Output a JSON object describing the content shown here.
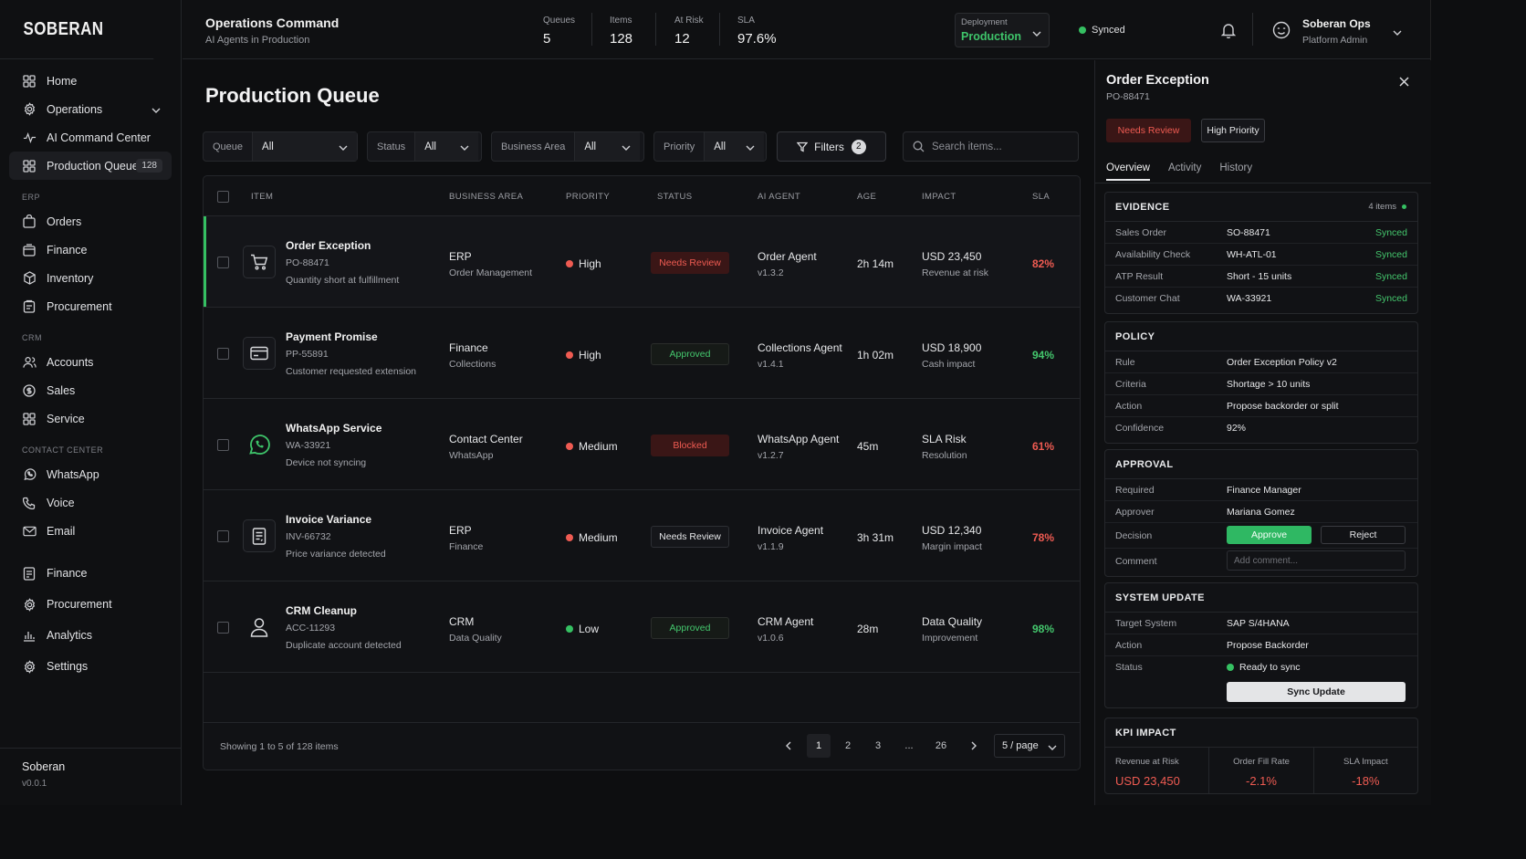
{
  "brand": "SOBERAN",
  "colors": {
    "accent_green": "#44c76d",
    "danger_red": "#ef5b52"
  },
  "sidebar": {
    "top_items": [
      {
        "label": "Home",
        "icon": "grid-icon"
      },
      {
        "label": "Operations",
        "icon": "gear-icon"
      },
      {
        "label": "AI Command Center",
        "icon": "pulse-icon"
      },
      {
        "label": "Production Queue",
        "icon": "grid-icon",
        "badge": "128"
      }
    ],
    "sections": [
      {
        "title": "ERP",
        "items": [
          "Orders",
          "Finance",
          "Inventory",
          "Procurement"
        ]
      },
      {
        "title": "CRM",
        "items": [
          "Accounts",
          "Sales",
          "Service"
        ]
      },
      {
        "title": "CONTACT CENTER",
        "items": [
          "WhatsApp",
          "Voice",
          "Email"
        ]
      }
    ],
    "bottom_items": [
      "Finance",
      "Procurement",
      "Analytics",
      "Settings"
    ],
    "footer": {
      "name": "Soberan",
      "version": "v0.0.1"
    }
  },
  "header": {
    "title": "Operations Command",
    "subtitle": "AI Agents in Production",
    "stats": [
      {
        "label": "Queues",
        "value": "5"
      },
      {
        "label": "Items",
        "value": "128"
      },
      {
        "label": "At Risk",
        "value": "12"
      },
      {
        "label": "SLA",
        "value": "97.6%"
      }
    ],
    "deployment": {
      "label": "Deployment",
      "value": "Production"
    },
    "sync_status": "Synced",
    "user": {
      "name": "Soberan Ops",
      "role": "Platform Admin"
    }
  },
  "main": {
    "title": "Production Queue",
    "filters": [
      {
        "label": "Queue",
        "value": "All"
      },
      {
        "label": "Status",
        "value": "All"
      },
      {
        "label": "Business Area",
        "value": "All"
      },
      {
        "label": "Priority",
        "value": "All"
      }
    ],
    "filters_button": {
      "label": "Filters",
      "count": "2"
    },
    "search_placeholder": "Search items...",
    "columns": [
      "ITEM",
      "BUSINESS AREA",
      "PRIORITY",
      "STATUS",
      "AI AGENT",
      "AGE",
      "IMPACT",
      "SLA"
    ],
    "rows": [
      {
        "title": "Order Exception",
        "id": "PO-88471",
        "desc": "Quantity short at fulfillment",
        "area": "ERP",
        "area_sub": "Order Management",
        "priority": "High",
        "status": "Needs Review",
        "agent": "Order Agent",
        "agent_ver": "v1.3.2",
        "age": "2h 14m",
        "impact": "USD 23,450",
        "impact_sub": "Revenue at risk",
        "sla": "82%"
      },
      {
        "title": "Payment Promise",
        "id": "PP-55891",
        "desc": "Customer requested extension",
        "area": "Finance",
        "area_sub": "Collections",
        "priority": "High",
        "status": "Approved",
        "agent": "Collections Agent",
        "agent_ver": "v1.4.1",
        "age": "1h 02m",
        "impact": "USD 18,900",
        "impact_sub": "Cash impact",
        "sla": "94%"
      },
      {
        "title": "WhatsApp Service",
        "id": "WA-33921",
        "desc": "Device not syncing",
        "area": "Contact Center",
        "area_sub": "WhatsApp",
        "priority": "Medium",
        "status": "Blocked",
        "agent": "WhatsApp Agent",
        "agent_ver": "v1.2.7",
        "age": "45m",
        "impact": "SLA Risk",
        "impact_sub": "Resolution",
        "sla": "61%"
      },
      {
        "title": "Invoice Variance",
        "id": "INV-66732",
        "desc": "Price variance detected",
        "area": "ERP",
        "area_sub": "Finance",
        "priority": "Medium",
        "status": "Needs Review",
        "agent": "Invoice Agent",
        "agent_ver": "v1.1.9",
        "age": "3h 31m",
        "impact": "USD 12,340",
        "impact_sub": "Margin impact",
        "sla": "78%"
      },
      {
        "title": "CRM Cleanup",
        "id": "ACC-11293",
        "desc": "Duplicate account detected",
        "area": "CRM",
        "area_sub": "Data Quality",
        "priority": "Low",
        "status": "Approved",
        "agent": "CRM Agent",
        "agent_ver": "v1.0.6",
        "age": "28m",
        "impact": "Data Quality",
        "impact_sub": "Improvement",
        "sla": "98%"
      }
    ],
    "pagination": {
      "showing": "Showing 1 to 5 of 128 items",
      "pages": [
        "1",
        "2",
        "3",
        "...",
        "26"
      ],
      "current": "1",
      "per_page": "5 / page"
    }
  },
  "panel": {
    "title": "Order Exception",
    "id": "PO-88471",
    "tags": [
      "Needs Review",
      "High Priority"
    ],
    "tabs": [
      "Overview",
      "Activity",
      "History"
    ],
    "evidence": {
      "title": "EVIDENCE",
      "meta": "4 items",
      "rows": [
        {
          "k": "Sales Order",
          "v": "SO-88471",
          "s": "Synced"
        },
        {
          "k": "Availability Check",
          "v": "WH-ATL-01",
          "s": "Synced"
        },
        {
          "k": "ATP Result",
          "v": "Short - 15 units",
          "s": "Synced"
        },
        {
          "k": "Customer Chat",
          "v": "WA-33921",
          "s": "Synced"
        }
      ]
    },
    "policy": {
      "title": "POLICY",
      "rows": [
        {
          "k": "Rule",
          "v": "Order Exception Policy v2"
        },
        {
          "k": "Criteria",
          "v": "Shortage > 10 units"
        },
        {
          "k": "Action",
          "v": "Propose backorder or split"
        },
        {
          "k": "Confidence",
          "v": "92%"
        }
      ]
    },
    "approval": {
      "title": "APPROVAL",
      "required_k": "Required",
      "required_v": "Finance Manager",
      "approver_k": "Approver",
      "approver_v": "Mariana Gomez",
      "decision_k": "Decision",
      "approve": "Approve",
      "reject": "Reject",
      "comment_k": "Comment",
      "comment_placeholder": "Add comment..."
    },
    "system_update": {
      "title": "SYSTEM UPDATE",
      "target_k": "Target System",
      "target_v": "SAP S/4HANA",
      "action_k": "Action",
      "action_v": "Propose Backorder",
      "status_k": "Status",
      "status_v": "Ready to sync",
      "button": "Sync Update"
    },
    "kpi": {
      "title": "KPI IMPACT",
      "items": [
        {
          "label": "Revenue at Risk",
          "value": "USD 23,450"
        },
        {
          "label": "Order Fill Rate",
          "value": "-2.1%"
        },
        {
          "label": "SLA Impact",
          "value": "-18%"
        }
      ]
    }
  }
}
